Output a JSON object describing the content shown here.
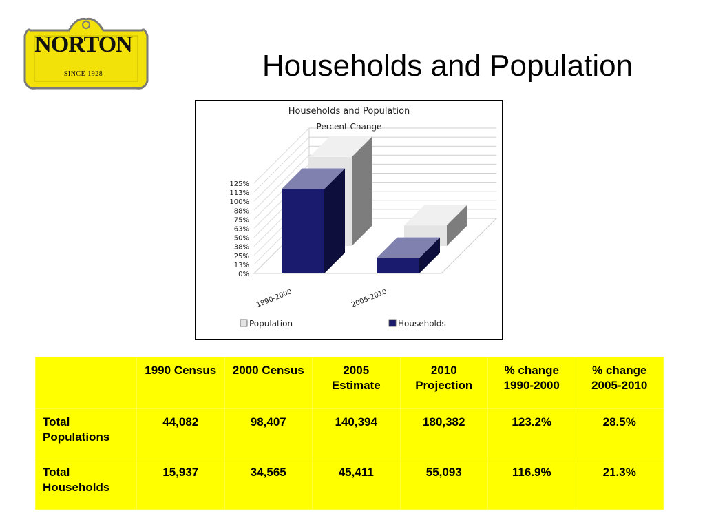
{
  "logo": {
    "name": "NORTON",
    "tagline": "SINCE 1928"
  },
  "page_title": "Households and Population",
  "chart_data": {
    "type": "bar",
    "title": "Households and Population",
    "subtitle": "Percent Change",
    "categories": [
      "1990-2000",
      "2005-2010"
    ],
    "series": [
      {
        "name": "Population",
        "values": [
          123.2,
          28.5
        ],
        "color": "#e4e4e4"
      },
      {
        "name": "Households",
        "values": [
          116.9,
          21.3
        ],
        "color": "#1a1a6e"
      }
    ],
    "yticks": [
      "125%",
      "113%",
      "100%",
      "88%",
      "75%",
      "63%",
      "50%",
      "38%",
      "25%",
      "13%",
      "0%"
    ],
    "ylim": [
      0,
      125
    ],
    "grid": true,
    "legend_position": "bottom",
    "style": "3d"
  },
  "table": {
    "headers": [
      "",
      "1990 Census",
      "2000 Census",
      "2005 Estimate",
      "2010 Projection",
      "% change 1990-2000",
      "% change 2005-2010"
    ],
    "rows": [
      {
        "label": "Total Populations",
        "values": [
          "44,082",
          "98,407",
          "140,394",
          "180,382",
          "123.2%",
          "28.5%"
        ]
      },
      {
        "label": "Total Households",
        "values": [
          "15,937",
          "34,565",
          "45,411",
          "55,093",
          "116.9%",
          "21.3%"
        ]
      }
    ]
  },
  "colors": {
    "table_background": "#ffff00",
    "logo_yellow": "#f2e20a",
    "households": "#1a1a6e",
    "population": "#e4e4e4"
  }
}
